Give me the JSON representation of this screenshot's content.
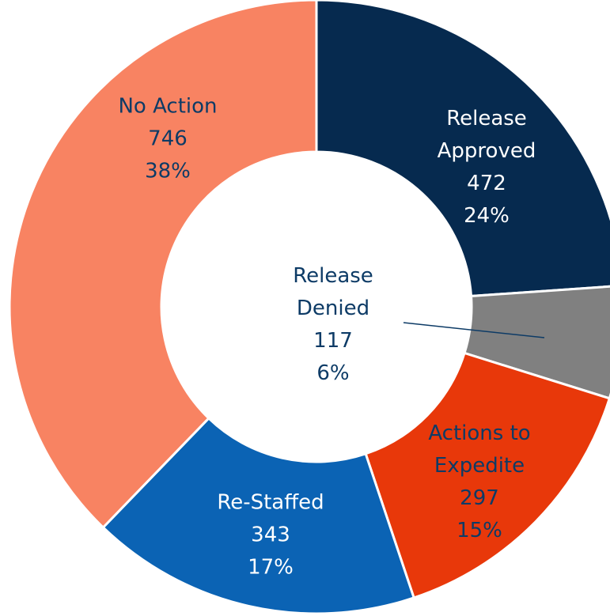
{
  "chart_data": {
    "type": "donut",
    "categories": [
      "Release Approved",
      "Release Denied",
      "Actions to Expedite",
      "Re-Staffed",
      "No Action"
    ],
    "values": [
      472,
      117,
      297,
      343,
      746
    ],
    "percent_labels": [
      "24%",
      "6%",
      "15%",
      "17%",
      "38%"
    ],
    "colors": [
      "#062a4f",
      "#808080",
      "#e8380a",
      "#0b63b4",
      "#f88362"
    ]
  }
}
